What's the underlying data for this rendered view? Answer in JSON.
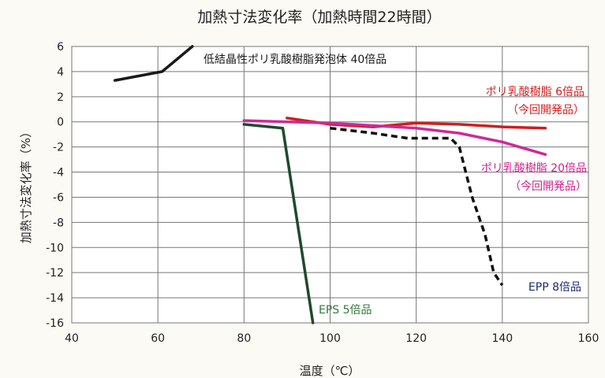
{
  "chart_data": {
    "type": "line",
    "title": "加熱寸法変化率（加熱時間22時間）",
    "xlabel": "温度（℃）",
    "ylabel": "加熱寸法変化率（%）",
    "xlim": [
      40,
      160
    ],
    "ylim": [
      -16,
      6
    ],
    "xticks": [
      40,
      60,
      80,
      100,
      120,
      140,
      160
    ],
    "yticks": [
      6,
      4,
      2,
      0,
      -2,
      -4,
      -6,
      -8,
      -10,
      -12,
      -14,
      -16
    ],
    "grid": true,
    "series": [
      {
        "name": "低結晶性ポリ乳酸樹脂発泡体 40倍品",
        "label_lines": [
          "低結晶性ポリ乳酸樹脂発泡体 40倍品"
        ],
        "color": "#1a1a1a",
        "style": "solid",
        "width": 3.5,
        "label_color": "#1a1a1a",
        "x": [
          50,
          61,
          68
        ],
        "y": [
          3.3,
          4.0,
          6.0
        ]
      },
      {
        "name": "ポリ乳酸樹脂 6倍品",
        "label_lines": [
          "ポリ乳酸樹脂 6倍品",
          "（今回開発品）"
        ],
        "color": "#cc1f1f",
        "style": "solid",
        "width": 3.5,
        "label_color": "#d42020",
        "x": [
          90,
          100,
          110,
          120,
          130,
          140,
          150
        ],
        "y": [
          0.3,
          -0.2,
          -0.4,
          -0.1,
          -0.2,
          -0.4,
          -0.5
        ]
      },
      {
        "name": "ポリ乳酸樹脂 20倍品",
        "label_lines": [
          "ポリ乳酸樹脂 20倍品",
          "（今回開発品）"
        ],
        "color": "#cc2a9a",
        "style": "solid",
        "width": 3.5,
        "label_color": "#d01f8f",
        "x": [
          80,
          90,
          100,
          110,
          120,
          130,
          140,
          150
        ],
        "y": [
          0.1,
          0.0,
          -0.1,
          -0.3,
          -0.5,
          -0.9,
          -1.6,
          -2.6
        ]
      },
      {
        "name": "EPP 8倍品",
        "label_lines": [
          "EPP 8倍品"
        ],
        "color": "#111111",
        "style": "dashed",
        "width": 3.5,
        "label_color": "#1c2a7a",
        "x": [
          100,
          110,
          118,
          125,
          128,
          130,
          133,
          136,
          138,
          140
        ],
        "y": [
          -0.5,
          -0.9,
          -1.3,
          -1.3,
          -1.3,
          -2.0,
          -6.0,
          -9.0,
          -12.0,
          -13.0
        ]
      },
      {
        "name": "EPS 5倍品",
        "label_lines": [
          "EPS 5倍品"
        ],
        "color": "#1f4a2a",
        "style": "solid",
        "width": 3.5,
        "label_color": "#2f7a3a",
        "x": [
          80,
          89,
          96
        ],
        "y": [
          -0.2,
          -0.5,
          -16.0
        ]
      }
    ]
  }
}
